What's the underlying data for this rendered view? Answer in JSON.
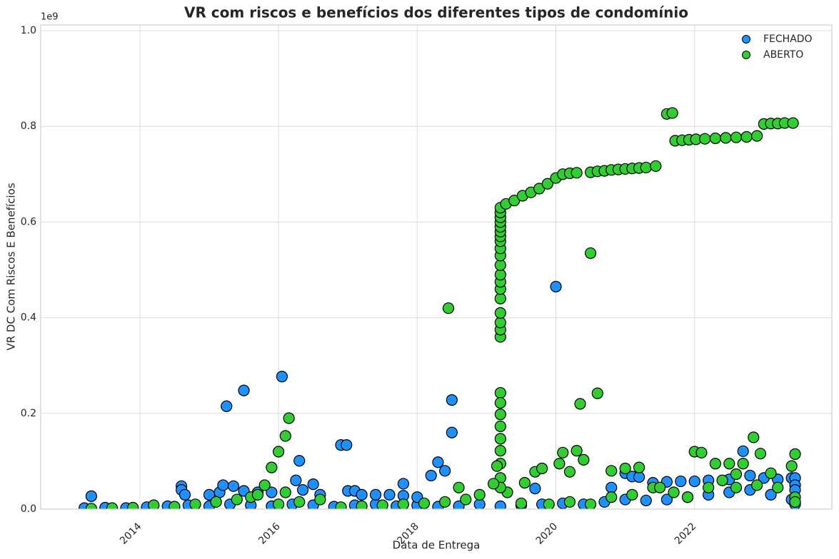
{
  "chart_data": {
    "type": "scatter",
    "title": "VR com riscos e benefícios dos diferentes tipos de condomínio",
    "xlabel": "Data de Entrega",
    "ylabel": "VR DC Com Riscos E Benefícios",
    "y_offset_label": "1e9",
    "xlim": [
      2012.57,
      2023.98
    ],
    "ylim": [
      0,
      1.012
    ],
    "xticks": [
      2014,
      2016,
      2018,
      2020,
      2022
    ],
    "yticks": [
      {
        "value": 0,
        "label": "0.0"
      },
      0.2,
      0.4,
      0.6,
      0.8,
      {
        "value": 1,
        "label": "1.0"
      }
    ],
    "grid": true,
    "legend": "upper right",
    "series": [
      {
        "name": "FECHADO",
        "color": "#1e90ff",
        "x": [
          2013.2,
          2013.5,
          2013.8,
          2014.1,
          2014.4,
          2014.7,
          2015.0,
          2015.3,
          2015.6,
          2015.9,
          2016.2,
          2016.5,
          2016.8,
          2017.1,
          2017.4,
          2017.7,
          2018.0,
          2018.3,
          2018.6,
          2018.9,
          2019.2,
          2019.5,
          2019.8,
          2020.1,
          2020.4,
          2020.7,
          2021.0,
          2021.3,
          2021.6,
          2021.9,
          2022.2,
          2022.5,
          2022.8,
          2023.1,
          2023.4,
          2023.45,
          2013.3,
          2015.25,
          2015.5,
          2016.05,
          2016.3,
          2016.9,
          2016.98,
          2018.3,
          2018.5,
          2018.5,
          2018.2,
          2018.4,
          2020.0,
          2022.7,
          2014.6,
          2014.6,
          2014.65,
          2015.0,
          2015.15,
          2015.2,
          2015.35,
          2015.5,
          2015.7,
          2015.9,
          2016.25,
          2016.35,
          2016.5,
          2016.6,
          2017.0,
          2017.1,
          2017.2,
          2017.4,
          2017.6,
          2017.8,
          2017.8,
          2018.0,
          2019.7,
          2020.8,
          2021.0,
          2021.1,
          2021.2,
          2021.4,
          2021.6,
          2021.8,
          2022.0,
          2022.2,
          2022.5,
          2022.8,
          2023.0,
          2023.2,
          2023.4,
          2023.45,
          2023.45,
          2023.45
        ],
        "values": [
          0.002,
          0.003,
          0.002,
          0.004,
          0.006,
          0.008,
          0.006,
          0.01,
          0.008,
          0.006,
          0.01,
          0.008,
          0.005,
          0.008,
          0.01,
          0.006,
          0.008,
          0.005,
          0.006,
          0.01,
          0.006,
          0.008,
          0.01,
          0.012,
          0.01,
          0.015,
          0.02,
          0.018,
          0.02,
          0.025,
          0.03,
          0.035,
          0.04,
          0.03,
          0.02,
          0.01,
          0.027,
          0.215,
          0.248,
          0.277,
          0.101,
          0.134,
          0.134,
          0.098,
          0.228,
          0.16,
          0.07,
          0.08,
          0.465,
          0.121,
          0.048,
          0.04,
          0.03,
          0.03,
          0.035,
          0.05,
          0.048,
          0.038,
          0.035,
          0.035,
          0.06,
          0.04,
          0.052,
          0.03,
          0.038,
          0.038,
          0.03,
          0.03,
          0.03,
          0.053,
          0.028,
          0.025,
          0.043,
          0.045,
          0.075,
          0.068,
          0.067,
          0.055,
          0.057,
          0.058,
          0.058,
          0.06,
          0.062,
          0.07,
          0.065,
          0.062,
          0.065,
          0.065,
          0.05,
          0.04
        ]
      },
      {
        "name": "ABERTO",
        "color": "#32cd32",
        "x": [
          2013.3,
          2013.6,
          2013.9,
          2014.2,
          2014.5,
          2014.8,
          2015.1,
          2015.4,
          2015.6,
          2015.7,
          2016.0,
          2016.3,
          2016.6,
          2016.9,
          2017.2,
          2017.5,
          2017.8,
          2018.1,
          2018.4,
          2018.7,
          2018.9,
          2019.3,
          2019.5,
          2019.9,
          2020.2,
          2020.5,
          2020.8,
          2021.1,
          2021.4,
          2021.7,
          2021.9,
          2022.2,
          2022.4,
          2022.6,
          2022.9,
          2023.2,
          2023.45,
          2023.45,
          2019.2,
          2019.2,
          2019.2,
          2019.2,
          2019.2,
          2019.2,
          2019.2,
          2019.2,
          2019.2,
          2019.2,
          2019.2,
          2019.2,
          2019.2,
          2019.2,
          2019.2,
          2019.2,
          2019.2,
          2019.2,
          2019.2,
          2019.2,
          2019.2,
          2019.2,
          2019.2,
          2019.2,
          2019.2,
          2019.2,
          2019.2,
          2019.2,
          2019.28,
          2019.4,
          2019.52,
          2019.64,
          2019.76,
          2019.88,
          2020.0,
          2020.1,
          2020.2,
          2020.3,
          2020.5,
          2020.6,
          2020.7,
          2020.8,
          2020.9,
          2021.0,
          2021.1,
          2021.2,
          2021.3,
          2021.44,
          2021.6,
          2021.68,
          2021.72,
          2021.82,
          2021.92,
          2022.02,
          2022.15,
          2022.3,
          2022.45,
          2022.6,
          2022.75,
          2022.9,
          2023.0,
          2023.1,
          2023.2,
          2023.3,
          2023.42,
          2018.45,
          2020.5,
          2020.35,
          2020.6,
          2015.9,
          2016.0,
          2016.1,
          2016.15,
          2015.8,
          2016.1,
          2018.6,
          2019.1,
          2019.15,
          2019.55,
          2019.7,
          2019.8,
          2020.05,
          2020.1,
          2020.2,
          2020.3,
          2020.4,
          2022.0,
          2022.1,
          2022.85,
          2022.95,
          2023.45,
          2020.8,
          2021.0,
          2021.2,
          2022.3,
          2022.5,
          2022.7,
          2023.4,
          2023.1,
          2022.6,
          2021.5
        ],
        "values": [
          0.001,
          0.002,
          0.003,
          0.008,
          0.005,
          0.01,
          0.015,
          0.02,
          0.025,
          0.03,
          0.01,
          0.015,
          0.02,
          0.004,
          0.006,
          0.008,
          0.01,
          0.012,
          0.015,
          0.02,
          0.03,
          0.035,
          0.012,
          0.01,
          0.015,
          0.01,
          0.025,
          0.03,
          0.045,
          0.035,
          0.025,
          0.045,
          0.06,
          0.045,
          0.05,
          0.045,
          0.025,
          0.015,
          0.36,
          0.375,
          0.39,
          0.41,
          0.44,
          0.46,
          0.475,
          0.49,
          0.51,
          0.53,
          0.545,
          0.56,
          0.57,
          0.58,
          0.59,
          0.6,
          0.61,
          0.62,
          0.63,
          0.243,
          0.222,
          0.198,
          0.173,
          0.147,
          0.122,
          0.095,
          0.065,
          0.045,
          0.638,
          0.645,
          0.655,
          0.662,
          0.67,
          0.68,
          0.692,
          0.7,
          0.702,
          0.703,
          0.704,
          0.706,
          0.707,
          0.709,
          0.71,
          0.711,
          0.712,
          0.713,
          0.714,
          0.717,
          0.826,
          0.828,
          0.77,
          0.771,
          0.772,
          0.773,
          0.774,
          0.775,
          0.776,
          0.777,
          0.778,
          0.78,
          0.805,
          0.806,
          0.806,
          0.807,
          0.807,
          0.42,
          0.535,
          0.22,
          0.242,
          0.087,
          0.12,
          0.153,
          0.19,
          0.05,
          0.035,
          0.045,
          0.053,
          0.09,
          0.055,
          0.078,
          0.085,
          0.095,
          0.118,
          0.078,
          0.122,
          0.103,
          0.12,
          0.118,
          0.15,
          0.116,
          0.115,
          0.08,
          0.085,
          0.087,
          0.095,
          0.095,
          0.095,
          0.09,
          0.075,
          0.073,
          0.045
        ]
      }
    ]
  }
}
